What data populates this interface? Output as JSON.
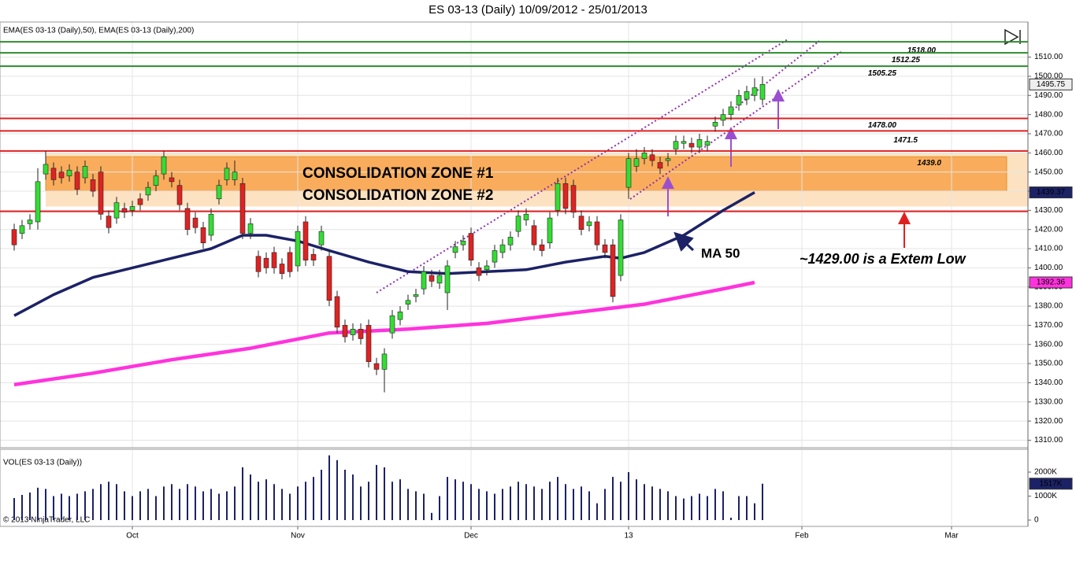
{
  "chart_data": {
    "type": "candlestick",
    "title": "ES 03-13 (Daily)  10/09/2012 - 25/01/2013",
    "indicator_label": "EMA(ES 03-13 (Daily),50), EMA(ES 03-13 (Daily),200)",
    "volume_label": "VOL(ES 03-13 (Daily))",
    "copyright": "© 2013 NinjaTrader, LLC",
    "up_color": "#33dd33",
    "down_color": "#e02222",
    "xlim": [
      -1.8,
      128.7
    ],
    "xticks": [
      {
        "value": 15,
        "label": "Oct"
      },
      {
        "value": 36,
        "label": "Nov"
      },
      {
        "value": 58,
        "label": "Dec"
      },
      {
        "value": 78,
        "label": "13"
      },
      {
        "value": 100,
        "label": "Feb"
      },
      {
        "value": 119,
        "label": "Mar"
      }
    ],
    "ylim": [
      1306.5,
      1527.5
    ],
    "yticks": [
      {
        "value": 1310,
        "label": "1310.00"
      },
      {
        "value": 1320,
        "label": "1320.00"
      },
      {
        "value": 1330,
        "label": "1330.00"
      },
      {
        "value": 1340,
        "label": "1340.00"
      },
      {
        "value": 1350,
        "label": "1350.00"
      },
      {
        "value": 1360,
        "label": "1360.00"
      },
      {
        "value": 1370,
        "label": "1370.00"
      },
      {
        "value": 1380,
        "label": "1380.00"
      },
      {
        "value": 1390,
        "label": "1390.00"
      },
      {
        "value": 1400,
        "label": "1400.00"
      },
      {
        "value": 1410,
        "label": "1410.00"
      },
      {
        "value": 1420,
        "label": "1420.00"
      },
      {
        "value": 1430,
        "label": "1430.00"
      },
      {
        "value": 1440,
        "label": "1440.00"
      },
      {
        "value": 1450,
        "label": "1450.00"
      },
      {
        "value": 1460,
        "label": "1460.00"
      },
      {
        "value": 1470,
        "label": "1470.00"
      },
      {
        "value": 1480,
        "label": "1480.00"
      },
      {
        "value": 1490,
        "label": "1490.00"
      },
      {
        "value": 1500,
        "label": "1500.00"
      },
      {
        "value": 1510,
        "label": "1510.00"
      }
    ],
    "grid": true,
    "open": [
      1420,
      1418,
      1423,
      1424,
      1449,
      1452,
      1450,
      1448,
      1450,
      1447,
      1446,
      1450,
      1427,
      1426,
      1431,
      1430,
      1436,
      1438,
      1443,
      1449,
      1447,
      1443,
      1431,
      1426,
      1421,
      1417,
      1436,
      1446,
      1446,
      1444,
      1418,
      1406,
      1405,
      1408,
      1402,
      1408,
      1401,
      1424,
      1407,
      1412,
      1406,
      1385,
      1370,
      1365,
      1368,
      1370,
      1350,
      1347,
      1366,
      1373,
      1381,
      1385,
      1389,
      1396,
      1392,
      1387,
      1408,
      1412,
      1418,
      1400,
      1399,
      1403,
      1408,
      1412,
      1419,
      1425,
      1422,
      1412,
      1413,
      1430,
      1444,
      1443,
      1427,
      1422,
      1424,
      1412,
      1412,
      1396,
      1442,
      1453,
      1457,
      1459,
      1455,
      1456,
      1462,
      1465,
      1465,
      1463,
      1464,
      1474,
      1477,
      1480,
      1485,
      1488,
      1490,
      1488
    ],
    "high": [
      1423,
      1425,
      1428,
      1452,
      1461,
      1455,
      1453,
      1454,
      1453,
      1456,
      1449,
      1453,
      1430,
      1437,
      1434,
      1435,
      1439,
      1445,
      1451,
      1461,
      1450,
      1446,
      1434,
      1429,
      1424,
      1431,
      1446,
      1455,
      1456,
      1447,
      1426,
      1409,
      1408,
      1411,
      1405,
      1411,
      1422,
      1427,
      1410,
      1422,
      1409,
      1388,
      1373,
      1371,
      1371,
      1373,
      1353,
      1358,
      1378,
      1380,
      1386,
      1389,
      1401,
      1399,
      1399,
      1404,
      1414,
      1417,
      1421,
      1403,
      1404,
      1412,
      1415,
      1419,
      1430,
      1431,
      1425,
      1415,
      1429,
      1447,
      1447,
      1446,
      1430,
      1427,
      1427,
      1415,
      1415,
      1428,
      1460,
      1462,
      1463,
      1462,
      1458,
      1460,
      1469,
      1469,
      1468,
      1470,
      1469,
      1479,
      1483,
      1487,
      1493,
      1495,
      1499,
      1500
    ],
    "low": [
      1409,
      1415,
      1420,
      1420,
      1446,
      1443,
      1444,
      1445,
      1438,
      1444,
      1437,
      1425,
      1418,
      1423,
      1426,
      1427,
      1430,
      1435,
      1440,
      1446,
      1442,
      1430,
      1417,
      1418,
      1410,
      1414,
      1433,
      1443,
      1443,
      1415,
      1415,
      1395,
      1397,
      1397,
      1394,
      1395,
      1398,
      1401,
      1401,
      1409,
      1380,
      1366,
      1361,
      1362,
      1360,
      1348,
      1344,
      1335,
      1363,
      1370,
      1378,
      1382,
      1386,
      1390,
      1389,
      1378,
      1405,
      1409,
      1401,
      1393,
      1396,
      1400,
      1405,
      1409,
      1416,
      1422,
      1409,
      1406,
      1410,
      1427,
      1428,
      1426,
      1417,
      1419,
      1409,
      1405,
      1382,
      1393,
      1436,
      1450,
      1454,
      1453,
      1449,
      1453,
      1459,
      1462,
      1460,
      1460,
      1461,
      1471,
      1474,
      1477,
      1482,
      1485,
      1487,
      1485
    ],
    "close": [
      1412,
      1422,
      1425,
      1445,
      1454,
      1446,
      1447,
      1451,
      1441,
      1453,
      1440,
      1428,
      1421,
      1434,
      1429,
      1432,
      1433,
      1442,
      1448,
      1458,
      1445,
      1433,
      1420,
      1421,
      1413,
      1428,
      1443,
      1452,
      1450,
      1418,
      1423,
      1398,
      1400,
      1400,
      1397,
      1398,
      1419,
      1404,
      1404,
      1419,
      1383,
      1369,
      1364,
      1368,
      1363,
      1351,
      1347,
      1355,
      1375,
      1377,
      1383,
      1386,
      1398,
      1393,
      1396,
      1401,
      1411,
      1414,
      1404,
      1396,
      1401,
      1409,
      1412,
      1416,
      1427,
      1428,
      1412,
      1409,
      1426,
      1444,
      1431,
      1429,
      1420,
      1424,
      1412,
      1408,
      1385,
      1425,
      1457,
      1457,
      1460,
      1456,
      1452,
      1457,
      1466,
      1466,
      1463,
      1467,
      1466,
      1476,
      1480,
      1484,
      1490,
      1492,
      1494,
      1495.75
    ],
    "series": [
      {
        "name": "EMA 50",
        "color": "#1c2266",
        "x": [
          0,
          5,
          10,
          15,
          20,
          25,
          29,
          32,
          36,
          40,
          45,
          50,
          55,
          60,
          65,
          70,
          75,
          77,
          80,
          85,
          90,
          94
        ],
        "values": [
          1375,
          1386,
          1395,
          1400,
          1405,
          1410,
          1417,
          1417,
          1414,
          1409,
          1403,
          1398,
          1397,
          1398,
          1399,
          1403,
          1406,
          1405,
          1408,
          1417,
          1430,
          1439.37
        ]
      },
      {
        "name": "EMA 200",
        "color": "#ff33dd",
        "x": [
          0,
          10,
          20,
          30,
          40,
          50,
          60,
          70,
          80,
          90,
          94
        ],
        "values": [
          1339,
          1345,
          1352,
          1358,
          1366,
          1368,
          1371,
          1376,
          1381,
          1389,
          1392.36
        ]
      }
    ],
    "volume": {
      "color": "#1c2266",
      "ylim": [
        -230,
        2920
      ],
      "yticks": [
        {
          "value": 2000,
          "label": "2000K"
        },
        {
          "value": 1000,
          "label": "1000K"
        },
        0
      ],
      "values": [
        920,
        1050,
        1150,
        1350,
        1300,
        1000,
        1100,
        1000,
        1100,
        1200,
        1300,
        1500,
        1600,
        1500,
        1200,
        1000,
        1200,
        1300,
        1000,
        1400,
        1500,
        1300,
        1500,
        1400,
        1200,
        1300,
        1100,
        1200,
        1400,
        2200,
        1900,
        1600,
        1700,
        1500,
        1300,
        1100,
        1400,
        1600,
        1800,
        2100,
        2700,
        2500,
        2100,
        1900,
        1400,
        1600,
        2300,
        2200,
        1600,
        1700,
        1300,
        1200,
        1100,
        300,
        1000,
        1800,
        1700,
        1600,
        1500,
        1300,
        1200,
        1100,
        1300,
        1400,
        1600,
        1500,
        1400,
        1300,
        1600,
        1800,
        1500,
        1300,
        1400,
        1200,
        700,
        1300,
        1800,
        1600,
        2000,
        1700,
        1500,
        1400,
        1300,
        1200,
        1000,
        900,
        1000,
        1100,
        1000,
        1300,
        1200,
        100,
        1000,
        1000,
        700,
        1517
      ],
      "last_label": "1517K"
    },
    "levels": [
      {
        "value": 1518,
        "label": "1518.00",
        "color": "#2e8b2e"
      },
      {
        "value": 1512.25,
        "label": "1512.25",
        "color": "#2e8b2e"
      },
      {
        "value": 1505.25,
        "label": "1505.25",
        "color": "#2e8b2e"
      },
      {
        "value": 1478,
        "label": "1478.00",
        "color": "#e02020"
      },
      {
        "value": 1471.5,
        "label": "1471.5",
        "color": "#e02020"
      },
      {
        "value": 1461,
        "color": "#e02020"
      },
      {
        "value": 1429.5,
        "color": "#e02020"
      }
    ],
    "zone_note": {
      "value": 1439.0,
      "label": "1439.0"
    },
    "zones": [
      {
        "label": "CONSOLIDATION ZONE #2",
        "from": 1432,
        "to": 1460,
        "color": "#fde2c2"
      },
      {
        "label": "CONSOLIDATION ZONE #1",
        "from": 1440,
        "to": 1458,
        "color": "#f9ad5c"
      }
    ],
    "annotations": [
      "MA 50",
      "~1429.00 is a Extem Low"
    ]
  }
}
